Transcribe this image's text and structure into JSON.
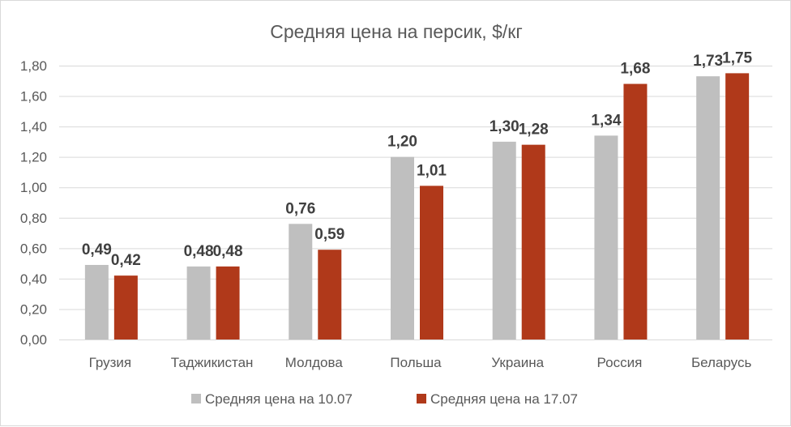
{
  "chart_data": {
    "type": "bar",
    "title": "Средняя цена на персик, $/кг",
    "categories": [
      "Грузия",
      "Таджикистан",
      "Молдова",
      "Польша",
      "Украина",
      "Россия",
      "Беларусь"
    ],
    "series": [
      {
        "name": "Средняя цена на 10.07",
        "color": "#BFBFBF",
        "values": [
          0.49,
          0.48,
          0.76,
          1.2,
          1.3,
          1.34,
          1.73
        ],
        "labels": [
          "0,49",
          "0,48",
          "0,76",
          "1,20",
          "1,30",
          "1,34",
          "1,73"
        ]
      },
      {
        "name": "Средняя цена на 17.07",
        "color": "#B0391A",
        "values": [
          0.42,
          0.48,
          0.59,
          1.01,
          1.28,
          1.68,
          1.75
        ],
        "labels": [
          "0,42",
          "0,48",
          "0,59",
          "1,01",
          "1,28",
          "1,68",
          "1,75"
        ]
      }
    ],
    "ylim": [
      0,
      1.8
    ],
    "yticks": [
      "0,00",
      "0,20",
      "0,40",
      "0,60",
      "0,80",
      "1,00",
      "1,20",
      "1,40",
      "1,60",
      "1,80"
    ],
    "grid": true,
    "legend": "bottom",
    "xlabel": "",
    "ylabel": ""
  }
}
